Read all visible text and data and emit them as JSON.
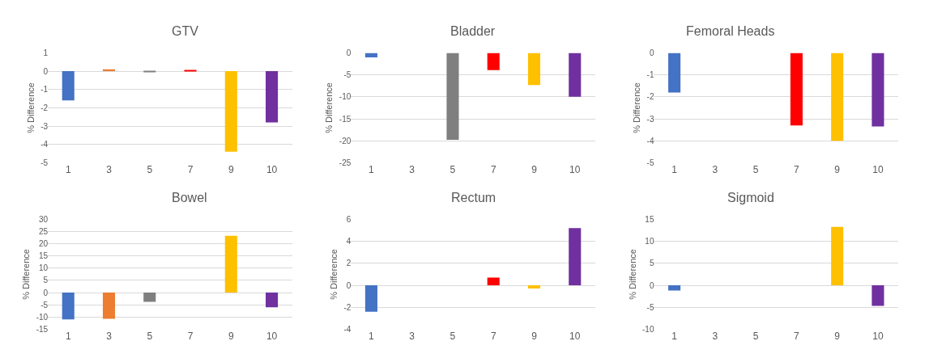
{
  "chart_data": [
    {
      "type": "bar",
      "title": "GTV",
      "ylabel": "% Difference",
      "categories": [
        "1",
        "3",
        "5",
        "7",
        "9",
        "10"
      ],
      "values": [
        -1.6,
        0.1,
        -0.05,
        0.05,
        -4.4,
        -2.8
      ],
      "colors": [
        "#4472c4",
        "#ed7d31",
        "#7f7f7f",
        "#ff0000",
        "#ffc000",
        "#7030a0"
      ],
      "ylim": [
        -5,
        1
      ],
      "yticks": [
        -5,
        -4,
        -3,
        -2,
        -1,
        0,
        1
      ],
      "grid": "y"
    },
    {
      "type": "bar",
      "title": "Bladder",
      "ylabel": "% Difference",
      "categories": [
        "1",
        "3",
        "5",
        "7",
        "9",
        "10"
      ],
      "values": [
        -1,
        0,
        -19.8,
        -3.9,
        -7.3,
        -10
      ],
      "colors": [
        "#4472c4",
        "#ed7d31",
        "#7f7f7f",
        "#ff0000",
        "#ffc000",
        "#7030a0"
      ],
      "ylim": [
        -25,
        0
      ],
      "yticks": [
        -25,
        -20,
        -15,
        -10,
        -5,
        0
      ],
      "grid": "y"
    },
    {
      "type": "bar",
      "title": "Femoral Heads",
      "ylabel": "% Difference",
      "categories": [
        "1",
        "3",
        "5",
        "7",
        "9",
        "10"
      ],
      "values": [
        -1.8,
        0,
        0,
        -3.3,
        -4.0,
        -3.35
      ],
      "colors": [
        "#4472c4",
        "#ed7d31",
        "#7f7f7f",
        "#ff0000",
        "#ffc000",
        "#7030a0"
      ],
      "ylim": [
        -5,
        0
      ],
      "yticks": [
        -5,
        -4,
        -3,
        -2,
        -1,
        0
      ],
      "grid": "y"
    },
    {
      "type": "bar",
      "title": "Bowel",
      "ylabel": "% Difference",
      "categories": [
        "1",
        "3",
        "5",
        "7",
        "9",
        "10"
      ],
      "values": [
        -11,
        -10.7,
        -3.8,
        0,
        23.3,
        -6
      ],
      "colors": [
        "#4472c4",
        "#ed7d31",
        "#7f7f7f",
        "#ff0000",
        "#ffc000",
        "#7030a0"
      ],
      "ylim": [
        -15,
        30
      ],
      "yticks": [
        -15,
        -10,
        -5,
        0,
        5,
        10,
        15,
        20,
        25,
        30
      ],
      "grid": "y"
    },
    {
      "type": "bar",
      "title": "Rectum",
      "ylabel": "% Difference",
      "categories": [
        "1",
        "3",
        "5",
        "7",
        "9",
        "10"
      ],
      "values": [
        -2.4,
        0,
        0,
        0.7,
        -0.3,
        5.2
      ],
      "colors": [
        "#4472c4",
        "#ed7d31",
        "#7f7f7f",
        "#ff0000",
        "#ffc000",
        "#7030a0"
      ],
      "ylim": [
        -4,
        6
      ],
      "yticks": [
        -4,
        -2,
        0,
        2,
        4,
        6
      ],
      "grid": "y"
    },
    {
      "type": "bar",
      "title": "Sigmoid",
      "ylabel": "% Difference",
      "categories": [
        "1",
        "3",
        "5",
        "7",
        "9",
        "10"
      ],
      "values": [
        -1.2,
        0,
        0,
        0,
        13.3,
        -4.7
      ],
      "colors": [
        "#4472c4",
        "#ed7d31",
        "#7f7f7f",
        "#ff0000",
        "#ffc000",
        "#7030a0"
      ],
      "ylim": [
        -10,
        15
      ],
      "yticks": [
        -10,
        -5,
        0,
        5,
        10,
        15
      ],
      "grid": "y"
    }
  ]
}
